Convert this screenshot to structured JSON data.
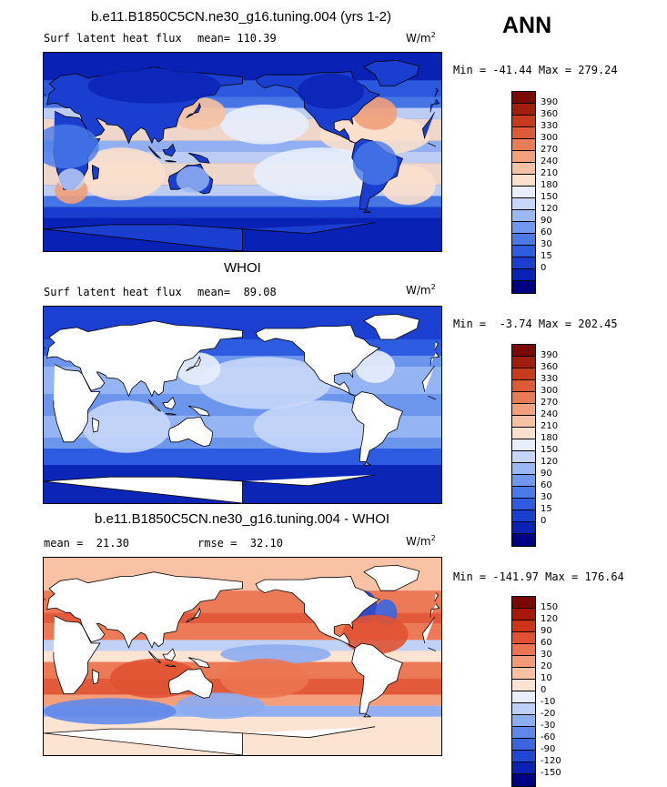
{
  "season": "ANN",
  "palettes": {
    "flux": [
      "#000080",
      "#0a22b4",
      "#1a3ed0",
      "#2e5ce0",
      "#4a7ae8",
      "#7098ee",
      "#9ab8f4",
      "#c6d6f8",
      "#e8eefc",
      "#fbe0cc",
      "#f6c2a2",
      "#f0a07a",
      "#e87c56",
      "#dc5a36",
      "#c83a1e",
      "#a01e0e",
      "#7a0a06"
    ],
    "diff": [
      "#000080",
      "#0a22b4",
      "#2046d4",
      "#3a66e0",
      "#6088ea",
      "#8cacf2",
      "#bcd0f8",
      "#e8eefc",
      "#fde4d2",
      "#f9c0a2",
      "#f49a76",
      "#ec7450",
      "#e05232",
      "#cc3418",
      "#a81808",
      "#7a0804"
    ]
  },
  "panels": [
    {
      "title": "b.e11.B1850C5CN.ne30_g16.tuning.004 (yrs 1-2)",
      "left_text": "Surf latent heat flux",
      "mean_text": "mean= 110.39",
      "units_base": "W/m",
      "units_exp": "2",
      "minmax": "Min = -41.44 Max = 279.24",
      "colorbar": [
        "390",
        "360",
        "330",
        "300",
        "270",
        "240",
        "210",
        "180",
        "150",
        "120",
        "90",
        "60",
        "30",
        "15",
        "0"
      ],
      "palette": "flux",
      "field": "model"
    },
    {
      "title": "WHOI",
      "left_text": "Surf latent heat flux",
      "mean_text": "mean=  89.08",
      "units_base": "W/m",
      "units_exp": "2",
      "minmax": "Min =  -3.74 Max = 202.45",
      "colorbar": [
        "390",
        "360",
        "330",
        "300",
        "270",
        "240",
        "210",
        "180",
        "150",
        "120",
        "90",
        "60",
        "30",
        "15",
        "0"
      ],
      "palette": "flux",
      "field": "obs"
    },
    {
      "title": "b.e11.B1850C5CN.ne30_g16.tuning.004 - WHOI",
      "left_text": "mean =  21.30",
      "mean_text": "rmse =  32.10",
      "units_base": "W/m",
      "units_exp": "2",
      "minmax": "Min = -141.97 Max = 176.64",
      "colorbar": [
        "150",
        "120",
        "90",
        "60",
        "30",
        "20",
        "10",
        "0",
        "-10",
        "-20",
        "-30",
        "-60",
        "-90",
        "-120",
        "-150"
      ],
      "palette": "diff",
      "field": "diff"
    }
  ]
}
